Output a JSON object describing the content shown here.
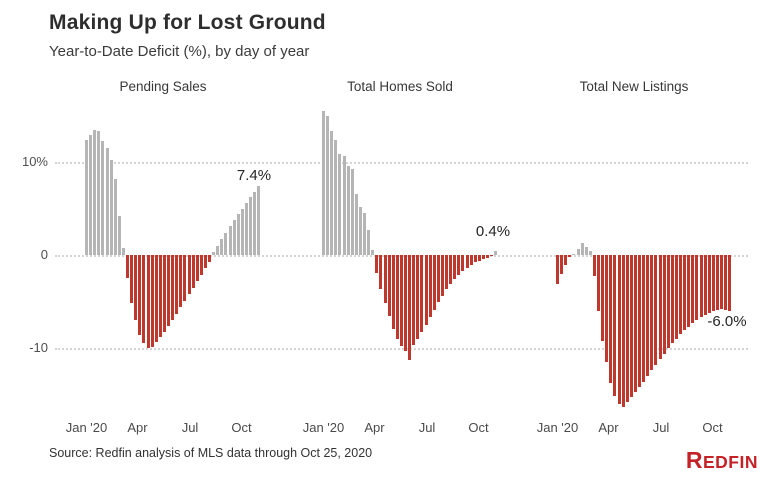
{
  "header": {
    "title": "Making Up for Lost Ground",
    "subtitle": "Year-to-Date Deficit (%), by day of year"
  },
  "axis": {
    "y_ticks": [
      "10%",
      "0",
      "-10"
    ],
    "y_tick_values": [
      10,
      0,
      -10
    ],
    "grid": "dotted horizontal lines at 10, 0, -10"
  },
  "colors": {
    "positive_bar": "#b5b5b5",
    "negative_bar": "#bf382e",
    "brand_red": "#c42227"
  },
  "chart_data": [
    {
      "type": "bar",
      "title": "Pending Sales",
      "x_ticks": [
        "Jan '20",
        "Apr",
        "Jul",
        "Oct"
      ],
      "x_unit": "weeks, Jan 1 - Oct 25 2020",
      "ylim": [
        -17,
        17
      ],
      "end_label": "7.4%",
      "values": [
        12.4,
        12.9,
        13.4,
        13.3,
        12.3,
        11.5,
        10.2,
        8.2,
        4.2,
        0.8,
        -2.5,
        -5.2,
        -7.0,
        -8.6,
        -9.5,
        -10.0,
        -9.9,
        -9.4,
        -8.8,
        -8.3,
        -7.6,
        -7.0,
        -6.3,
        -5.6,
        -4.9,
        -4.2,
        -3.5,
        -2.8,
        -2.1,
        -1.4,
        -0.7,
        0.3,
        1.0,
        1.7,
        2.4,
        3.1,
        3.8,
        4.4,
        5.0,
        5.6,
        6.2,
        6.8,
        7.4
      ]
    },
    {
      "type": "bar",
      "title": "Total Homes Sold",
      "x_ticks": [
        "Jan '20",
        "Apr",
        "Jul",
        "Oct"
      ],
      "x_unit": "weeks, Jan 1 - Oct 25 2020",
      "ylim": [
        -17,
        17
      ],
      "end_label": "0.4%",
      "values": [
        15.5,
        15.0,
        13.3,
        12.4,
        10.9,
        10.6,
        9.6,
        9.3,
        6.6,
        5.2,
        4.5,
        2.7,
        0.5,
        -1.9,
        -3.6,
        -5.2,
        -6.6,
        -7.9,
        -9.0,
        -9.8,
        -10.3,
        -11.3,
        -9.7,
        -9.0,
        -8.3,
        -7.5,
        -6.7,
        -5.9,
        -5.1,
        -4.4,
        -3.7,
        -3.1,
        -2.6,
        -2.1,
        -1.7,
        -1.4,
        -1.1,
        -0.8,
        -0.6,
        -0.4,
        -0.3,
        -0.1,
        0.4
      ]
    },
    {
      "type": "bar",
      "title": "Total New Listings",
      "x_ticks": [
        "Jan '20",
        "Apr",
        "Jul",
        "Oct"
      ],
      "x_unit": "weeks, Jan 1 - Oct 25 2020",
      "ylim": [
        -17,
        17
      ],
      "end_label": "-6.0%",
      "values": [
        -3.1,
        -2.0,
        -1.1,
        -0.2,
        0.1,
        0.7,
        1.3,
        0.9,
        0.4,
        -2.3,
        -6.0,
        -9.2,
        -11.5,
        -13.8,
        -15.2,
        -16.0,
        -16.3,
        -15.8,
        -15.3,
        -14.7,
        -14.2,
        -13.6,
        -13.0,
        -12.4,
        -11.8,
        -11.2,
        -10.6,
        -10.0,
        -9.5,
        -9.0,
        -8.5,
        -8.1,
        -7.7,
        -7.3,
        -7.0,
        -6.7,
        -6.4,
        -6.2,
        -6.0,
        -5.9,
        -5.8,
        -5.9,
        -6.0
      ]
    }
  ],
  "footer": {
    "source": "Source: Redfin analysis of MLS data through Oct 25, 2020",
    "logo": {
      "first_letter": "R",
      "rest": "EDFIN"
    }
  }
}
